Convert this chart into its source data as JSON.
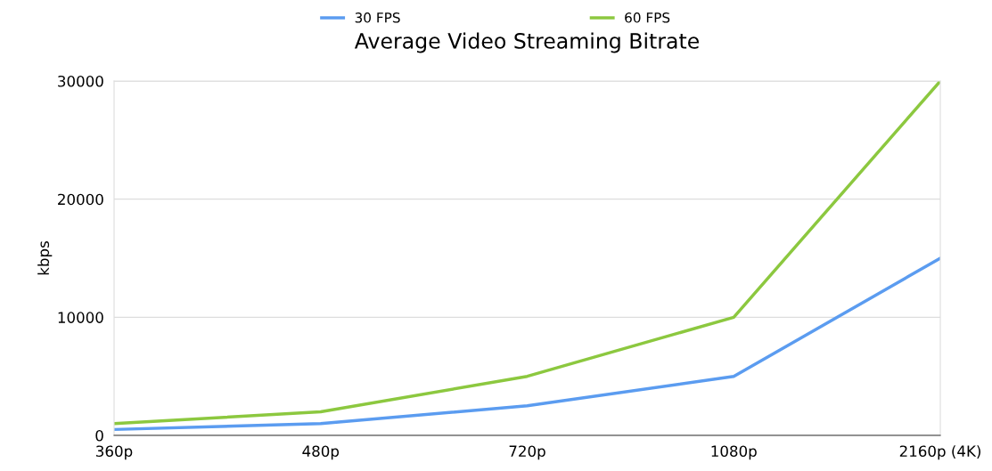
{
  "chart_data": {
    "type": "line",
    "title": "Average Video Streaming Bitrate",
    "ylabel": "kbps",
    "categories": [
      "360p",
      "480p",
      "720p",
      "1080p",
      "2160p (4K)"
    ],
    "series": [
      {
        "name": "30 FPS",
        "color": "#5b9cf0",
        "values": [
          500,
          1000,
          2500,
          5000,
          15000
        ]
      },
      {
        "name": "60 FPS",
        "color": "#8cc83f",
        "values": [
          1000,
          2000,
          5000,
          10000,
          30000
        ]
      }
    ],
    "ylim": [
      0,
      30000
    ],
    "yticks": [
      0,
      10000,
      20000,
      30000
    ],
    "grid": "y",
    "legend": "top",
    "marker": "none",
    "line_style": "solid"
  }
}
